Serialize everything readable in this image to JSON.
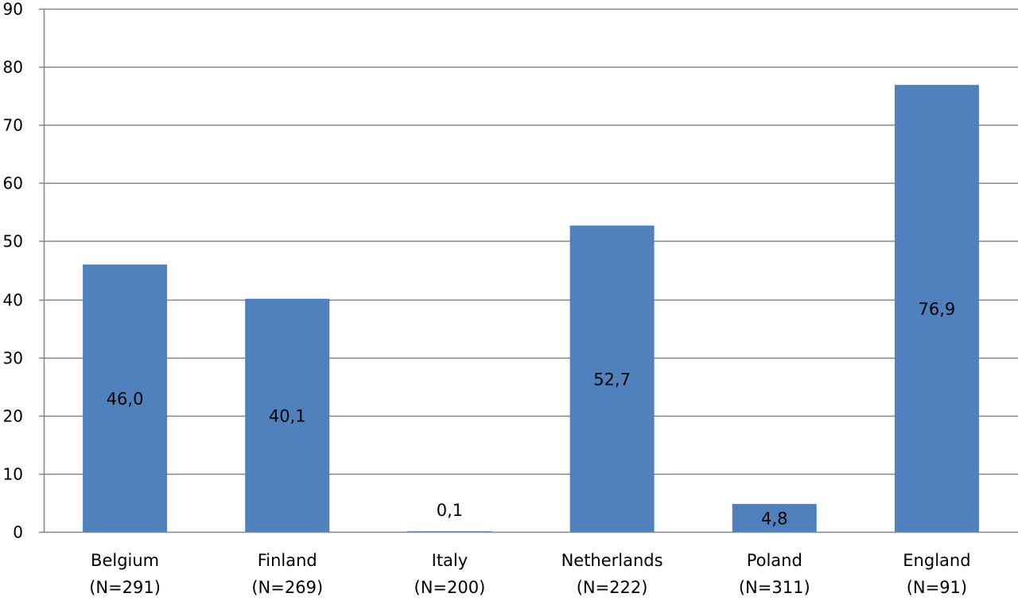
{
  "chart_data": {
    "type": "bar",
    "categories": [
      "Belgium",
      "Finland",
      "Italy",
      "Netherlands",
      "Poland",
      "England"
    ],
    "category_sublabels": [
      "(N=291)",
      "(N=269)",
      "(N=200)",
      "(N=222)",
      "(N=311)",
      "(N=91)"
    ],
    "values": [
      46.0,
      40.1,
      0.1,
      52.7,
      4.8,
      76.9
    ],
    "data_labels": [
      "46,0",
      "40,1",
      "0,1",
      "52,7",
      "4,8",
      "76,9"
    ],
    "ylim": [
      0,
      90
    ],
    "yticks": [
      0,
      10,
      20,
      30,
      40,
      50,
      60,
      70,
      80,
      90
    ],
    "ytick_labels": [
      "0",
      "10",
      "20",
      "30",
      "40",
      "50",
      "60",
      "70",
      "80",
      "90"
    ],
    "grid": true,
    "bar_color": "#4f81bd",
    "grid_color": "#868686"
  }
}
